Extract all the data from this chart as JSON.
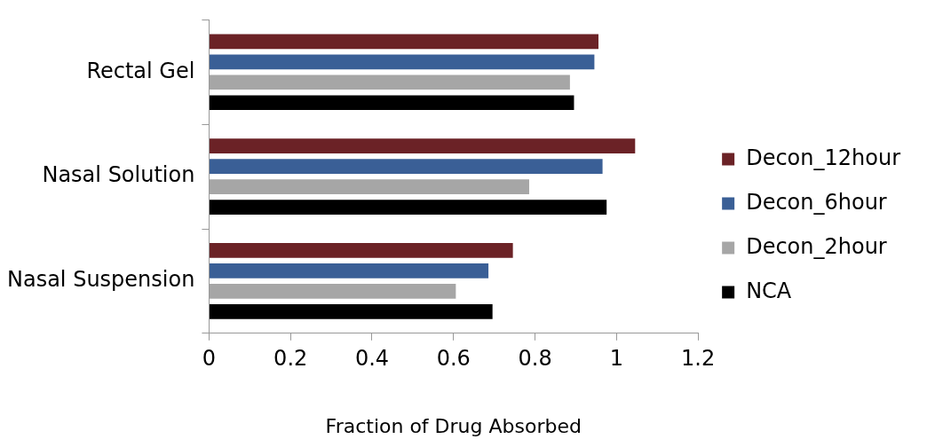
{
  "chart_data": {
    "type": "bar",
    "orientation": "horizontal",
    "xlabel": "Fraction of Drug Absorbed",
    "categories": [
      "Rectal Gel",
      "Nasal Solution",
      "Nasal Suspension"
    ],
    "series": [
      {
        "name": "Decon_12hour",
        "color": "#6b2226",
        "values": [
          0.96,
          1.05,
          0.75
        ]
      },
      {
        "name": "Decon_6hour",
        "color": "#3a5f96",
        "values": [
          0.95,
          0.97,
          0.69
        ]
      },
      {
        "name": "Decon_2hour",
        "color": "#a6a6a6",
        "values": [
          0.89,
          0.79,
          0.61
        ]
      },
      {
        "name": "NCA",
        "color": "#000000",
        "values": [
          0.9,
          0.98,
          0.7
        ]
      }
    ],
    "xlim": [
      0,
      1.2
    ],
    "xticks": [
      0,
      0.2,
      0.4,
      0.6,
      0.8,
      1,
      1.2
    ],
    "grid": false,
    "legend": "right"
  }
}
